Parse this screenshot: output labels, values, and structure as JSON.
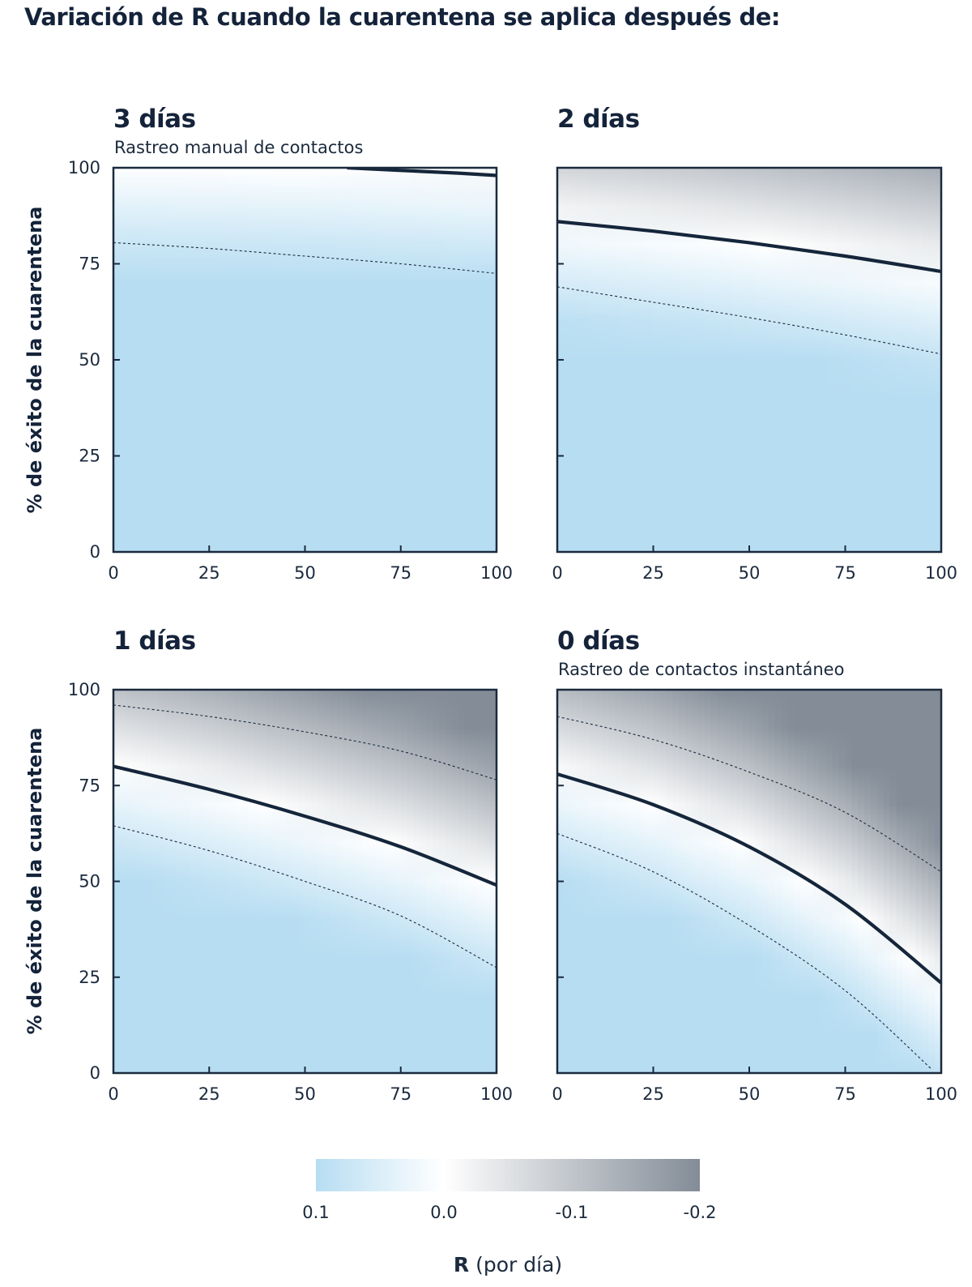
{
  "title": "Variación de R cuando la cuarentena se aplica después de:",
  "y_axis_label": "% de éxito de la cuarentena",
  "colorbar": {
    "title_bold": "R",
    "title_rest": " (por día)",
    "ticks": [
      "0.1",
      "0.0",
      "-0.1",
      "-0.2"
    ],
    "colors": {
      "high": "#b7ddf2",
      "zero": "#ffffff",
      "low": "#838c97"
    }
  },
  "colors": {
    "line": "#15263b",
    "dashed": "#1b2a3d",
    "frame": "#1b2a3d"
  },
  "chart_data": [
    {
      "type": "heatmap",
      "title": "3 días",
      "subtitle": "Rastreo manual de contactos",
      "xlim": [
        0,
        100
      ],
      "ylim": [
        0,
        100
      ],
      "x_ticks": [
        "0",
        "25",
        "50",
        "75",
        "100"
      ],
      "y_ticks": [
        "0",
        "25",
        "50",
        "75",
        "100"
      ],
      "zero_contour": {
        "x": [
          61,
          75,
          90,
          100
        ],
        "y": [
          100,
          99.3,
          98.6,
          98
        ]
      },
      "dashed_contours": [
        {
          "x": [
            0,
            25,
            50,
            75,
            100
          ],
          "y": [
            80.5,
            79,
            77,
            75,
            72.5
          ]
        }
      ],
      "shading": {
        "zero_curve": [
          101,
          100.5,
          100,
          99,
          98
        ]
      }
    },
    {
      "type": "heatmap",
      "title": "2 días",
      "subtitle": "",
      "xlim": [
        0,
        100
      ],
      "ylim": [
        0,
        100
      ],
      "x_ticks": [
        "0",
        "25",
        "50",
        "75",
        "100"
      ],
      "y_ticks": [
        "0",
        "25",
        "50",
        "75",
        "100"
      ],
      "zero_contour": {
        "x": [
          0,
          25,
          50,
          75,
          100
        ],
        "y": [
          86,
          83.5,
          80.5,
          77,
          73
        ]
      },
      "dashed_contours": [
        {
          "x": [
            0,
            25,
            50,
            75,
            100
          ],
          "y": [
            69,
            65,
            61,
            56.5,
            51.5
          ]
        }
      ],
      "shading": {
        "zero_curve": [
          86,
          83.5,
          80.5,
          77,
          73
        ]
      }
    },
    {
      "type": "heatmap",
      "title": "1 días",
      "subtitle": "",
      "xlim": [
        0,
        100
      ],
      "ylim": [
        0,
        100
      ],
      "x_ticks": [
        "0",
        "25",
        "50",
        "75",
        "100"
      ],
      "y_ticks": [
        "0",
        "25",
        "50",
        "75",
        "100"
      ],
      "zero_contour": {
        "x": [
          0,
          25,
          50,
          75,
          100
        ],
        "y": [
          80,
          74,
          67,
          59,
          49
        ]
      },
      "dashed_contours": [
        {
          "x": [
            0,
            25,
            50,
            75,
            100
          ],
          "y": [
            96,
            93,
            89,
            84,
            76.5
          ]
        },
        {
          "x": [
            0,
            25,
            50,
            75,
            100
          ],
          "y": [
            64.5,
            58,
            50,
            41,
            27.5
          ]
        }
      ],
      "shading": {
        "zero_curve": [
          80,
          74,
          67,
          59,
          49
        ]
      }
    },
    {
      "type": "heatmap",
      "title": "0 días",
      "subtitle": "Rastreo de contactos instantáneo",
      "xlim": [
        0,
        100
      ],
      "ylim": [
        0,
        100
      ],
      "x_ticks": [
        "0",
        "25",
        "50",
        "75",
        "100"
      ],
      "y_ticks": [
        "0",
        "25",
        "50",
        "75",
        "100"
      ],
      "zero_contour": {
        "x": [
          0,
          25,
          50,
          75,
          100
        ],
        "y": [
          78,
          70,
          59,
          44,
          23.5
        ]
      },
      "dashed_contours": [
        {
          "x": [
            0,
            25,
            50,
            75,
            100
          ],
          "y": [
            93,
            87,
            78.5,
            68,
            52.5
          ]
        },
        {
          "x": [
            0,
            25,
            50,
            75,
            97.5
          ],
          "y": [
            62.5,
            52.5,
            38.5,
            21.5,
            1
          ]
        }
      ],
      "shading": {
        "zero_curve": [
          78,
          70,
          59,
          44,
          23.5
        ]
      }
    }
  ]
}
